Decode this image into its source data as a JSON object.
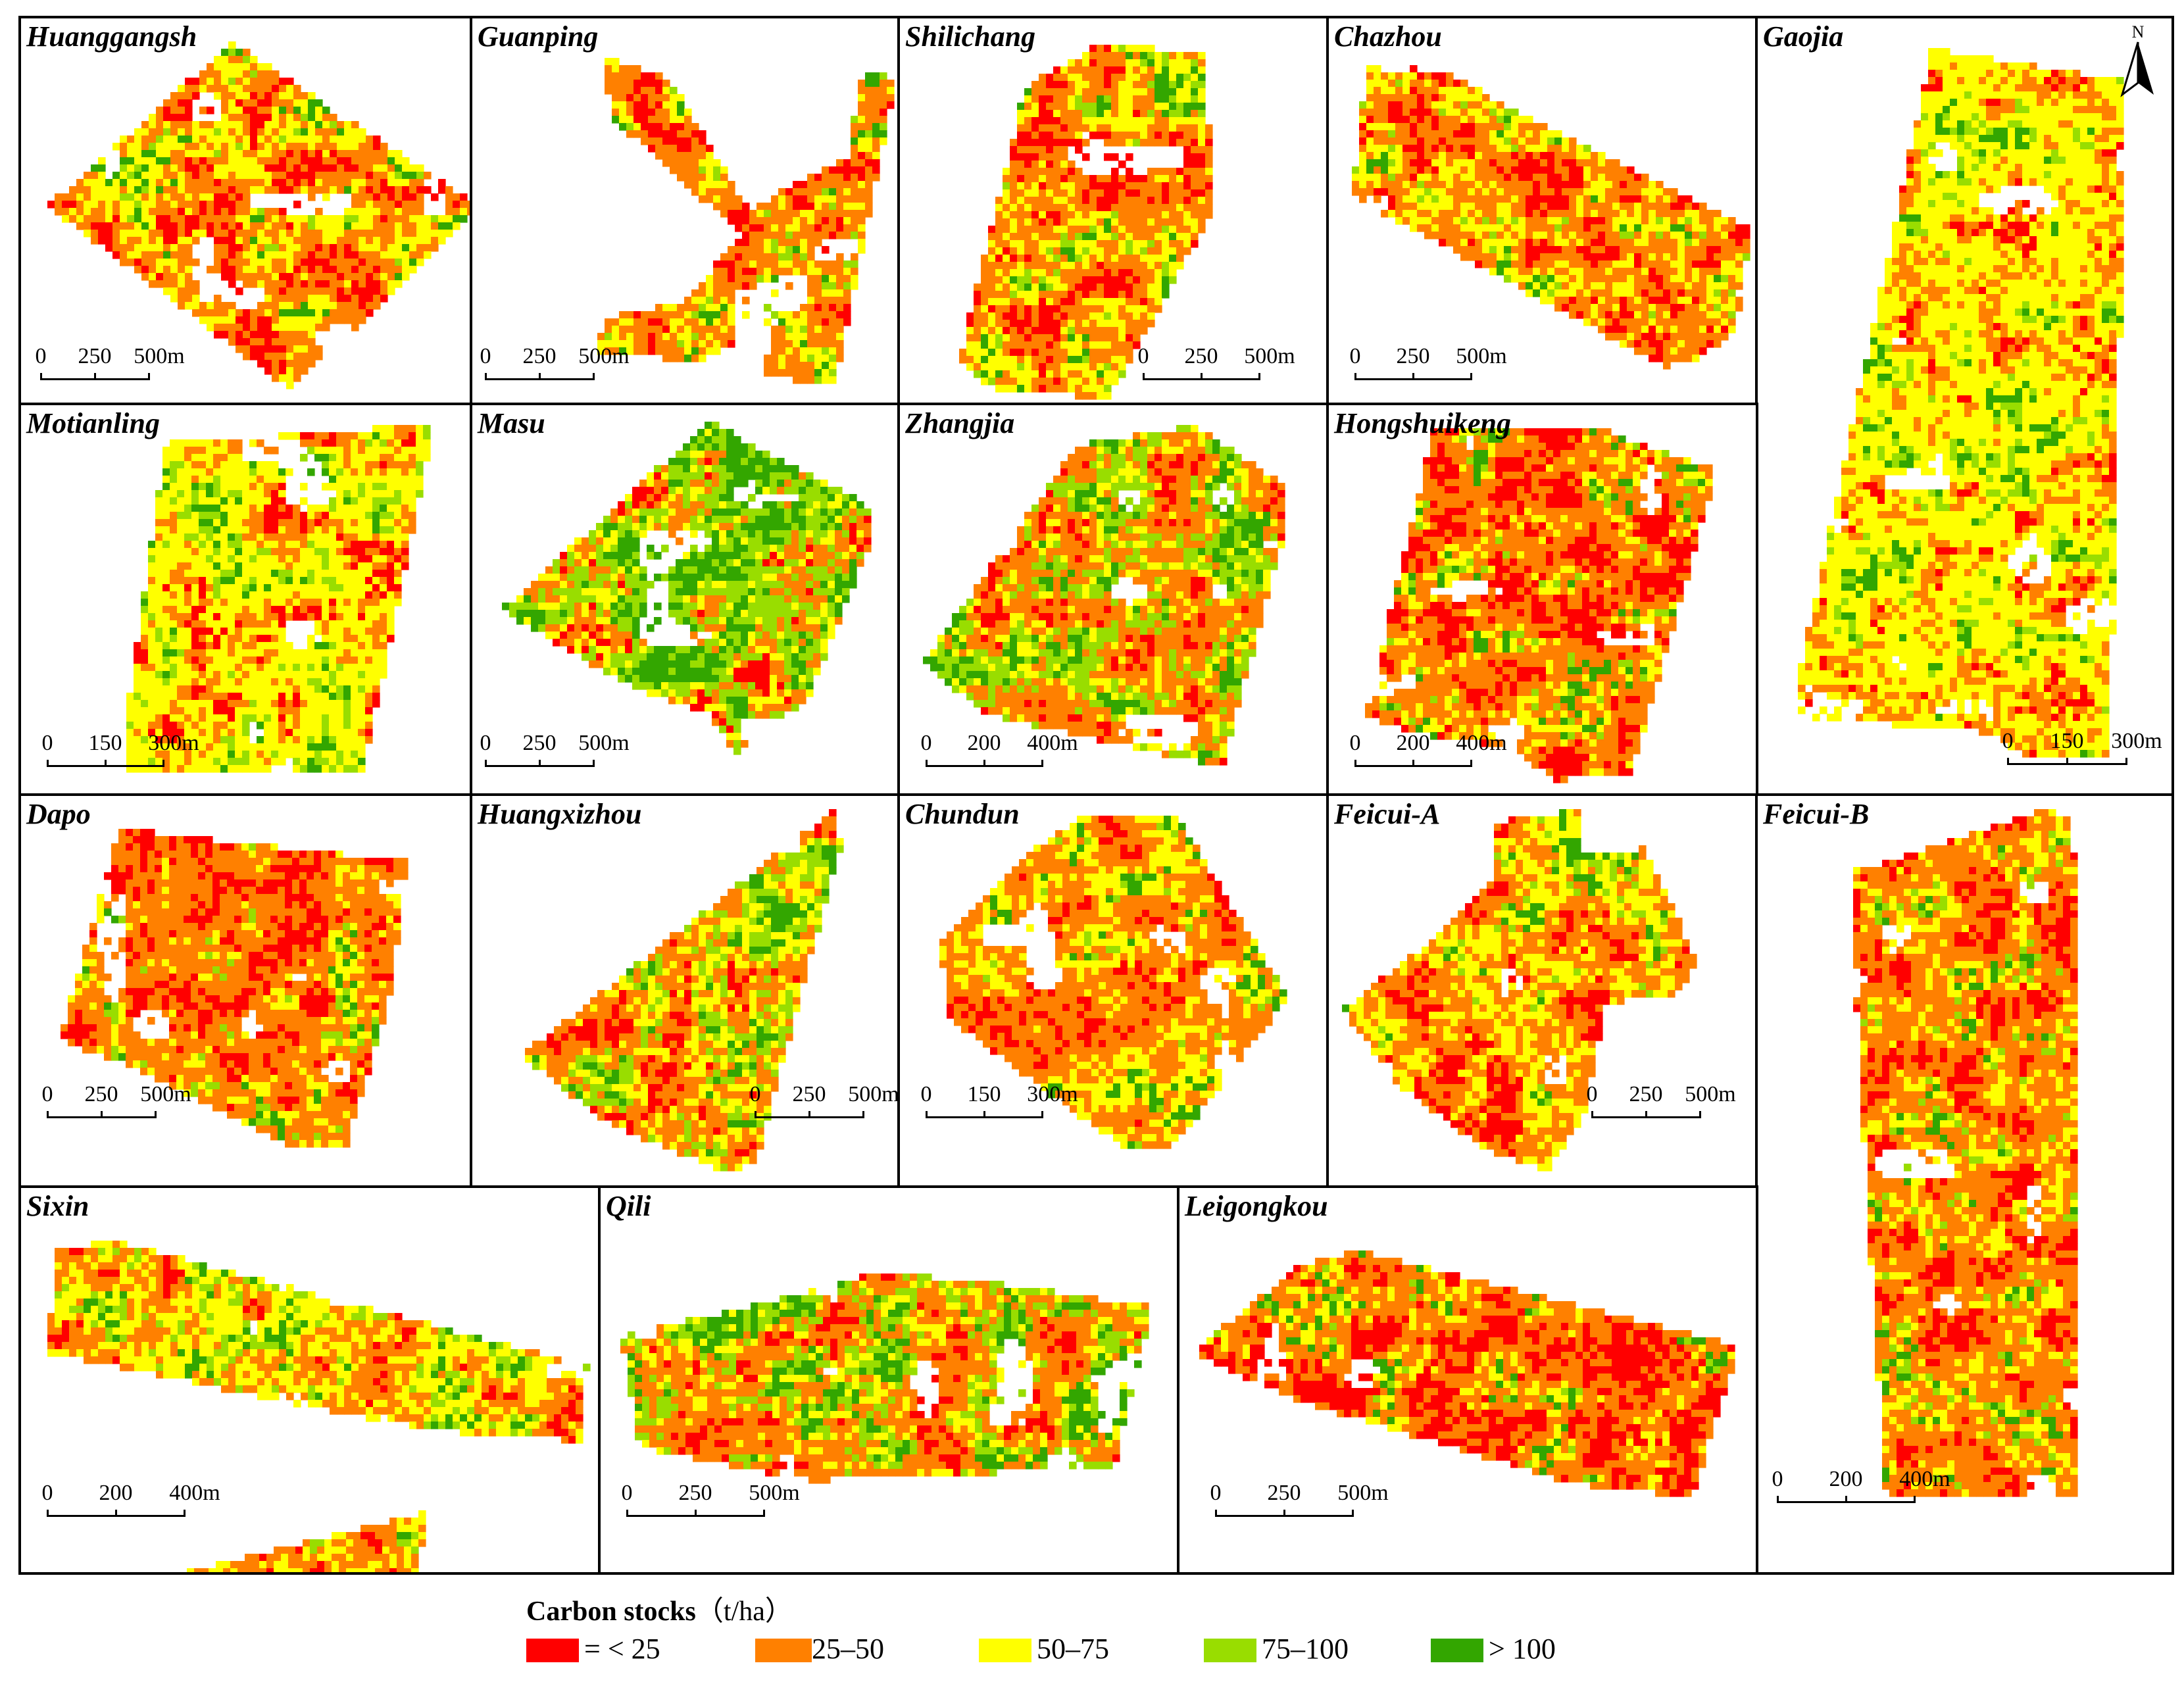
{
  "legend": {
    "title": "Carbon stocks",
    "unit": "（t/ha）",
    "classes": [
      {
        "label": "= < 25",
        "color": "#ff0000"
      },
      {
        "label": "25–50",
        "color": "#ff8000"
      },
      {
        "label": "50–75",
        "color": "#ffff00"
      },
      {
        "label": "75–100",
        "color": "#99dd00"
      },
      {
        "label": "> 100",
        "color": "#33a600"
      }
    ]
  },
  "north_arrow": {
    "label": "N",
    "icon": "north-arrow-icon"
  },
  "sites": [
    {
      "name": "Huanggangsh",
      "scale": [
        "0",
        "250",
        "500m"
      ],
      "class_mix": [
        0.22,
        0.36,
        0.34,
        0.06,
        0.02
      ]
    },
    {
      "name": "Guanping",
      "scale": [
        "0",
        "250",
        "500m"
      ],
      "class_mix": [
        0.16,
        0.48,
        0.22,
        0.1,
        0.04
      ]
    },
    {
      "name": "Shilichang",
      "scale": [
        "0",
        "250",
        "500m"
      ],
      "class_mix": [
        0.16,
        0.4,
        0.26,
        0.13,
        0.05
      ]
    },
    {
      "name": "Chazhou",
      "scale": [
        "0",
        "250",
        "500m"
      ],
      "class_mix": [
        0.18,
        0.4,
        0.3,
        0.1,
        0.02
      ]
    },
    {
      "name": "Gaojia",
      "scale": [
        "0",
        "150",
        "300m"
      ],
      "class_mix": [
        0.07,
        0.26,
        0.52,
        0.12,
        0.03
      ]
    },
    {
      "name": "Motianling",
      "scale": [
        "0",
        "150",
        "300m"
      ],
      "class_mix": [
        0.07,
        0.22,
        0.5,
        0.17,
        0.04
      ]
    },
    {
      "name": "Masu",
      "scale": [
        "0",
        "250",
        "500m"
      ],
      "class_mix": [
        0.07,
        0.25,
        0.12,
        0.28,
        0.28
      ]
    },
    {
      "name": "Zhangjia",
      "scale": [
        "0",
        "200",
        "400m"
      ],
      "class_mix": [
        0.1,
        0.4,
        0.12,
        0.25,
        0.13
      ]
    },
    {
      "name": "Hongshuikeng",
      "scale": [
        "0",
        "200",
        "400m"
      ],
      "class_mix": [
        0.4,
        0.4,
        0.14,
        0.05,
        0.01
      ]
    },
    {
      "name": "Dapo",
      "scale": [
        "0",
        "250",
        "500m"
      ],
      "class_mix": [
        0.27,
        0.45,
        0.18,
        0.07,
        0.03
      ]
    },
    {
      "name": "Huangxizhou",
      "scale": [
        "0",
        "250",
        "500m"
      ],
      "class_mix": [
        0.16,
        0.34,
        0.18,
        0.2,
        0.12
      ]
    },
    {
      "name": "Chundun",
      "scale": [
        "0",
        "150",
        "300m"
      ],
      "class_mix": [
        0.16,
        0.48,
        0.3,
        0.05,
        0.01
      ]
    },
    {
      "name": "Feicui-A",
      "scale": [
        "0",
        "250",
        "500m"
      ],
      "class_mix": [
        0.2,
        0.36,
        0.32,
        0.1,
        0.02
      ]
    },
    {
      "name": "Feicui-B",
      "scale": [
        "0",
        "200",
        "400m"
      ],
      "class_mix": [
        0.26,
        0.46,
        0.2,
        0.07,
        0.01
      ]
    },
    {
      "name": "Sixin",
      "scale": [
        "0",
        "200",
        "400m"
      ],
      "class_mix": [
        0.12,
        0.38,
        0.33,
        0.13,
        0.04
      ]
    },
    {
      "name": "Qili",
      "scale": [
        "0",
        "250",
        "500m"
      ],
      "class_mix": [
        0.12,
        0.4,
        0.12,
        0.18,
        0.18
      ]
    },
    {
      "name": "Leigongkou",
      "scale": [
        "0",
        "250",
        "500m"
      ],
      "class_mix": [
        0.4,
        0.38,
        0.17,
        0.04,
        0.01
      ]
    }
  ]
}
